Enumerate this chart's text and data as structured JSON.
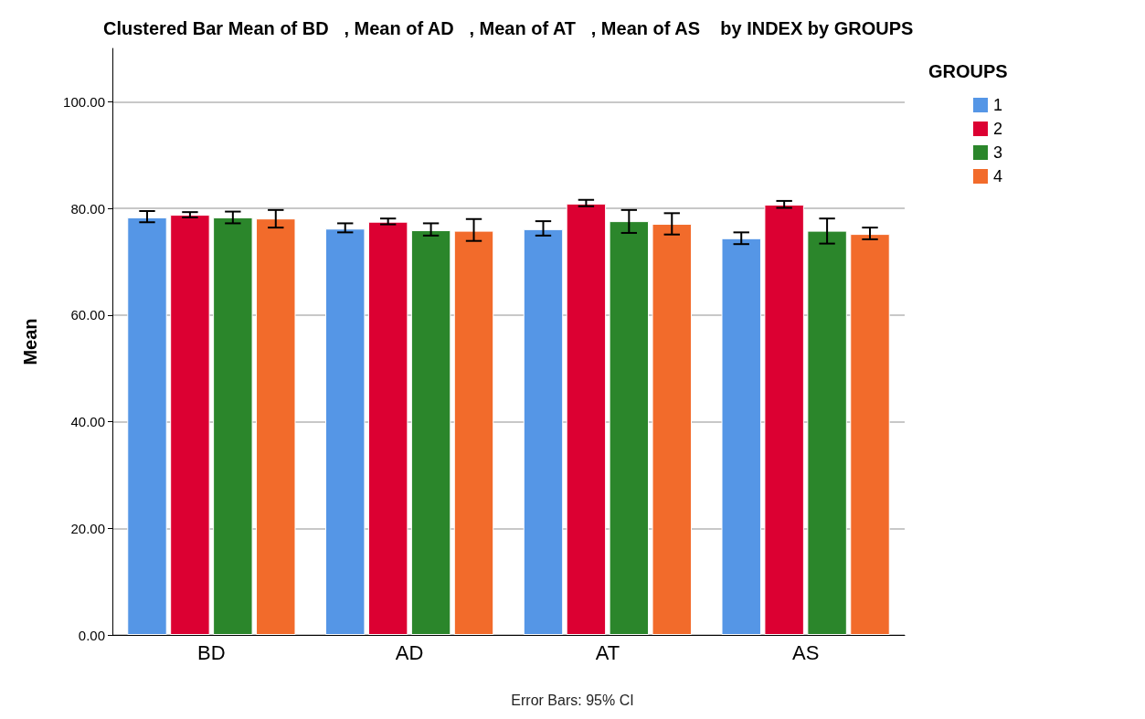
{
  "chart_data": {
    "type": "bar",
    "title": "Clustered Bar Mean of BD   , Mean of AD   , Mean of AT   , Mean of AS    by INDEX by GROUPS",
    "ylabel": "Mean",
    "legend_title": "GROUPS",
    "annotations": [
      "Error Bars: 95% CI"
    ],
    "categories": [
      "BD",
      "AD",
      "AT",
      "AS"
    ],
    "series": [
      {
        "name": "1",
        "color": "#5596e6",
        "values": [
          78.3,
          76.2,
          76.1,
          74.4
        ],
        "errors": [
          [
            77.4,
            79.5
          ],
          [
            75.5,
            77.2
          ],
          [
            74.9,
            77.6
          ],
          [
            73.3,
            75.5
          ]
        ]
      },
      {
        "name": "2",
        "color": "#dc0032",
        "values": [
          78.8,
          77.5,
          80.9,
          80.7
        ],
        "errors": [
          [
            78.3,
            79.3
          ],
          [
            77.0,
            78.1
          ],
          [
            80.4,
            81.6
          ],
          [
            80.1,
            81.4
          ]
        ]
      },
      {
        "name": "3",
        "color": "#2b862b",
        "values": [
          78.3,
          75.9,
          77.6,
          75.8
        ],
        "errors": [
          [
            77.2,
            79.4
          ],
          [
            74.9,
            77.2
          ],
          [
            75.4,
            79.7
          ],
          [
            73.4,
            78.1
          ]
        ]
      },
      {
        "name": "4",
        "color": "#f26b2b",
        "values": [
          78.1,
          75.8,
          77.1,
          75.2
        ],
        "errors": [
          [
            76.4,
            79.7
          ],
          [
            73.9,
            78.0
          ],
          [
            75.1,
            79.1
          ],
          [
            74.2,
            76.4
          ]
        ]
      }
    ],
    "ylim": [
      0,
      110
    ],
    "yticks": [
      {
        "value": 0,
        "label": "0.00"
      },
      {
        "value": 20,
        "label": "20.00"
      },
      {
        "value": 40,
        "label": "40.00"
      },
      {
        "value": 60,
        "label": "60.00"
      },
      {
        "value": 80,
        "label": "80.00"
      },
      {
        "value": 100,
        "label": "100.00"
      }
    ],
    "grid": "y",
    "legend": "right"
  }
}
